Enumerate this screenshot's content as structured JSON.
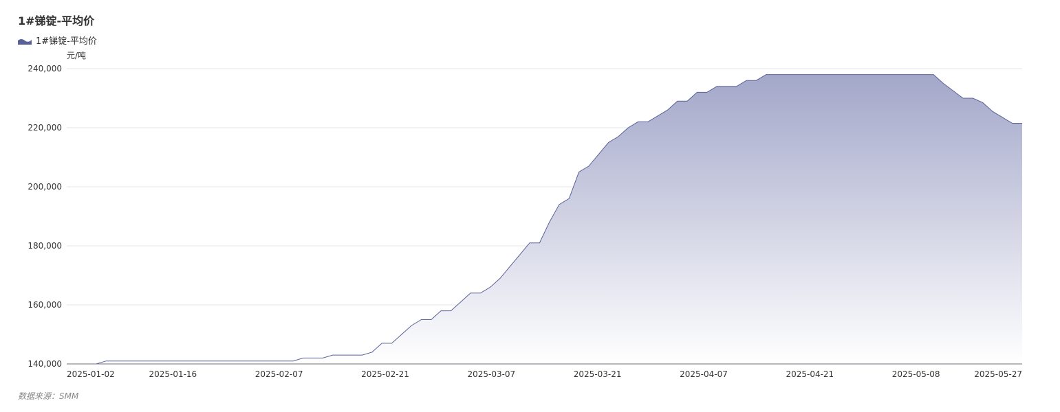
{
  "title": "1#锑锭-平均价",
  "legend": {
    "label": "1#锑锭-平均价",
    "icon": "area-series-icon"
  },
  "unit_label": "元/吨",
  "source_label": "数据来源：SMM",
  "colors": {
    "line": "#5a6198",
    "area_top": "#a3a7c9",
    "area_bottom": "#ffffff",
    "grid": "#e6e6e6",
    "axis": "#6e7079"
  },
  "chart_data": {
    "type": "area",
    "title": "1#锑锭-平均价",
    "ylabel": "元/吨",
    "xlabel": "",
    "ylim": [
      140000,
      240000
    ],
    "yticks": [
      140000,
      160000,
      180000,
      200000,
      220000,
      240000
    ],
    "ytick_labels": [
      "140,000",
      "160,000",
      "180,000",
      "200,000",
      "220,000",
      "240,000"
    ],
    "xtick_labels": [
      "2025-01-02",
      "2025-01-16",
      "2025-02-07",
      "2025-02-21",
      "2025-03-07",
      "2025-03-21",
      "2025-04-07",
      "2025-04-21",
      "2025-05-08",
      "2025-05-27"
    ],
    "grid": true,
    "legend_position": "top-left",
    "series": [
      {
        "name": "1#锑锭-平均价",
        "values": [
          140000,
          140000,
          140000,
          140000,
          141000,
          141000,
          141000,
          141000,
          141000,
          141000,
          141000,
          141000,
          141000,
          141000,
          141000,
          141000,
          141000,
          141000,
          141000,
          141000,
          141000,
          141000,
          141000,
          141000,
          142000,
          142000,
          142000,
          143000,
          143000,
          143000,
          143000,
          144000,
          147000,
          147000,
          150000,
          153000,
          155000,
          155000,
          158000,
          158000,
          161000,
          164000,
          164000,
          166000,
          169000,
          173000,
          177000,
          181000,
          181000,
          188000,
          194000,
          196000,
          205000,
          207000,
          211000,
          215000,
          217000,
          220000,
          222000,
          222000,
          224000,
          226000,
          229000,
          229000,
          232000,
          232000,
          234000,
          234000,
          234000,
          236000,
          236000,
          238000,
          238000,
          238000,
          238000,
          238000,
          238000,
          238000,
          238000,
          238000,
          238000,
          238000,
          238000,
          238000,
          238000,
          238000,
          238000,
          238000,
          238000,
          235000,
          232500,
          230000,
          230000,
          228500,
          225500,
          223500,
          221500,
          221500
        ]
      }
    ]
  }
}
